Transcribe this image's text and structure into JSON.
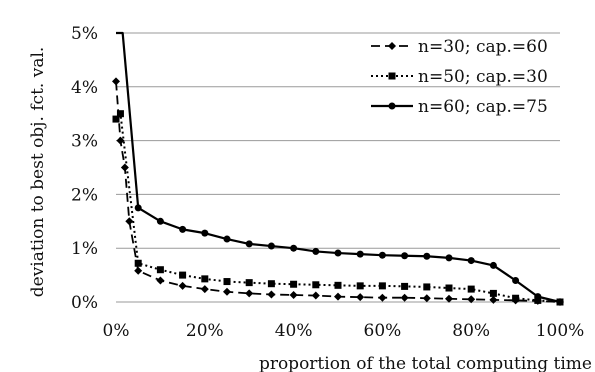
{
  "chart_data": {
    "type": "line",
    "xlabel": "proportion of the total computing time",
    "ylabel": "deviation to best obj. fct. val.",
    "xlim": [
      0,
      100
    ],
    "ylim": [
      0,
      5
    ],
    "x_ticks": [
      0,
      20,
      40,
      60,
      80,
      100
    ],
    "x_tick_labels": [
      "0%",
      "20%",
      "40%",
      "60%",
      "80%",
      "100%"
    ],
    "y_ticks": [
      0,
      1,
      2,
      3,
      4,
      5
    ],
    "y_tick_labels": [
      "0%",
      "1%",
      "2%",
      "3%",
      "4%",
      "5%"
    ],
    "grid": "horizontal",
    "legend_position": "top-right",
    "series": [
      {
        "name": "n=30; cap.=60",
        "style": "dashed",
        "marker": "diamond",
        "x": [
          0,
          1,
          2,
          3,
          5,
          10,
          15,
          20,
          25,
          30,
          35,
          40,
          45,
          50,
          55,
          60,
          65,
          70,
          75,
          80,
          85,
          90,
          95,
          100
        ],
        "values": [
          4.1,
          3.0,
          2.5,
          1.5,
          0.58,
          0.4,
          0.3,
          0.24,
          0.19,
          0.16,
          0.14,
          0.13,
          0.12,
          0.1,
          0.09,
          0.08,
          0.08,
          0.07,
          0.06,
          0.05,
          0.04,
          0.03,
          0.02,
          0.0
        ]
      },
      {
        "name": "n=50; cap.=30",
        "style": "dotted",
        "marker": "square",
        "x": [
          0,
          1,
          5,
          10,
          15,
          20,
          25,
          30,
          35,
          40,
          45,
          50,
          55,
          60,
          65,
          70,
          75,
          80,
          85,
          90,
          95,
          100
        ],
        "values": [
          3.4,
          3.5,
          0.72,
          0.6,
          0.5,
          0.43,
          0.38,
          0.36,
          0.34,
          0.33,
          0.32,
          0.31,
          0.3,
          0.3,
          0.29,
          0.28,
          0.26,
          0.24,
          0.16,
          0.07,
          0.03,
          0.0
        ]
      },
      {
        "name": "n=60; cap.=75",
        "style": "solid",
        "marker": "circle",
        "x": [
          0,
          1.5,
          5,
          10,
          15,
          20,
          25,
          30,
          35,
          40,
          45,
          50,
          55,
          60,
          65,
          70,
          75,
          80,
          85,
          90,
          95,
          100
        ],
        "values": [
          5.0,
          5.0,
          1.75,
          1.5,
          1.35,
          1.28,
          1.17,
          1.08,
          1.04,
          1.0,
          0.94,
          0.91,
          0.89,
          0.87,
          0.86,
          0.85,
          0.82,
          0.77,
          0.68,
          0.4,
          0.1,
          0.0
        ]
      }
    ]
  }
}
